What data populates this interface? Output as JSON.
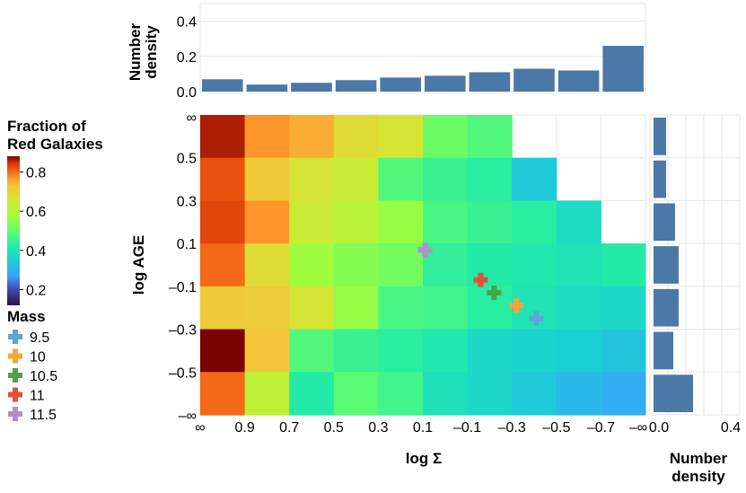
{
  "chart_data": {
    "type": "heatmap",
    "main": {
      "xlabel": "log Σ",
      "ylabel": "log AGE",
      "x_tick_labels": [
        "∞",
        "0.9",
        "0.7",
        "0.5",
        "0.3",
        "0.1",
        "–0.1",
        "–0.3",
        "–0.5",
        "–0.7",
        "–∞"
      ],
      "y_tick_labels": [
        "∞",
        "0.5",
        "0.3",
        "0.1",
        "–0.1",
        "–0.3",
        "–0.5",
        "–∞"
      ],
      "x_bins": [
        "∞ to 0.9",
        "0.9 to 0.7",
        "0.7 to 0.5",
        "0.5 to 0.3",
        "0.3 to 0.1",
        "0.1 to –0.1",
        "–0.1 to –0.3",
        "–0.3 to –0.5",
        "–0.5 to –0.7",
        "–0.7 to –∞"
      ],
      "y_bins": [
        "∞ to 0.5",
        "0.5 to 0.3",
        "0.3 to 0.1",
        "0.1 to –0.1",
        "–0.1 to –0.3",
        "–0.3 to –0.5",
        "–0.5 to –∞"
      ],
      "fraction_red": [
        [
          0.86,
          0.77,
          0.75,
          0.68,
          0.66,
          0.51,
          0.48,
          null,
          null,
          null
        ],
        [
          0.82,
          0.72,
          0.66,
          0.64,
          0.48,
          0.45,
          0.43,
          0.34,
          null,
          null
        ],
        [
          0.83,
          0.77,
          0.64,
          0.61,
          0.56,
          0.47,
          0.45,
          0.43,
          0.38,
          null
        ],
        [
          0.8,
          0.68,
          0.57,
          0.54,
          0.52,
          0.44,
          0.42,
          0.41,
          0.4,
          0.42
        ],
        [
          0.72,
          0.71,
          0.66,
          0.56,
          0.47,
          0.46,
          0.43,
          0.4,
          0.38,
          0.37
        ],
        [
          0.88,
          0.73,
          0.48,
          0.45,
          0.43,
          0.41,
          0.37,
          0.36,
          0.35,
          0.33
        ],
        [
          0.8,
          0.62,
          0.42,
          0.49,
          0.46,
          0.39,
          0.37,
          0.34,
          0.31,
          0.29
        ]
      ],
      "mass_points": [
        {
          "mass": "9.5",
          "x_bin_pos": 7.55,
          "y_bin_pos": 4.75
        },
        {
          "mass": "10",
          "x_bin_pos": 7.1,
          "y_bin_pos": 4.45
        },
        {
          "mass": "10.5",
          "x_bin_pos": 6.6,
          "y_bin_pos": 4.15
        },
        {
          "mass": "11",
          "x_bin_pos": 6.3,
          "y_bin_pos": 3.85
        },
        {
          "mass": "11.5",
          "x_bin_pos": 5.05,
          "y_bin_pos": 3.15
        }
      ]
    },
    "top_histogram": {
      "ylabel": "Number density",
      "ylim": [
        0,
        0.5
      ],
      "y_ticks": [
        "0.0",
        "0.2",
        "0.4"
      ],
      "values": [
        0.07,
        0.04,
        0.05,
        0.065,
        0.08,
        0.09,
        0.11,
        0.13,
        0.12,
        0.26
      ]
    },
    "right_histogram": {
      "xlabel": "Number density",
      "xlim": [
        0,
        0.5
      ],
      "x_ticks": [
        "0.0",
        "0.4"
      ],
      "values": [
        0.07,
        0.07,
        0.12,
        0.14,
        0.14,
        0.11,
        0.22
      ]
    },
    "color_legend": {
      "title": "Fraction of Red Galaxies",
      "title_lines": [
        "Fraction of",
        "Red Galaxies"
      ],
      "range": [
        0.12,
        0.88
      ],
      "ticks": [
        "0.8",
        "0.6",
        "0.4",
        "0.2"
      ],
      "tick_values": [
        0.8,
        0.6,
        0.4,
        0.2
      ]
    },
    "mass_legend": {
      "title": "Mass",
      "entries": [
        {
          "label": "9.5",
          "color": "#5ea5cf"
        },
        {
          "label": "10",
          "color": "#f5a43a"
        },
        {
          "label": "10.5",
          "color": "#49a446"
        },
        {
          "label": "11",
          "color": "#e2513b"
        },
        {
          "label": "11.5",
          "color": "#ab93c9"
        }
      ]
    },
    "bar_color": "#4c78a8"
  }
}
